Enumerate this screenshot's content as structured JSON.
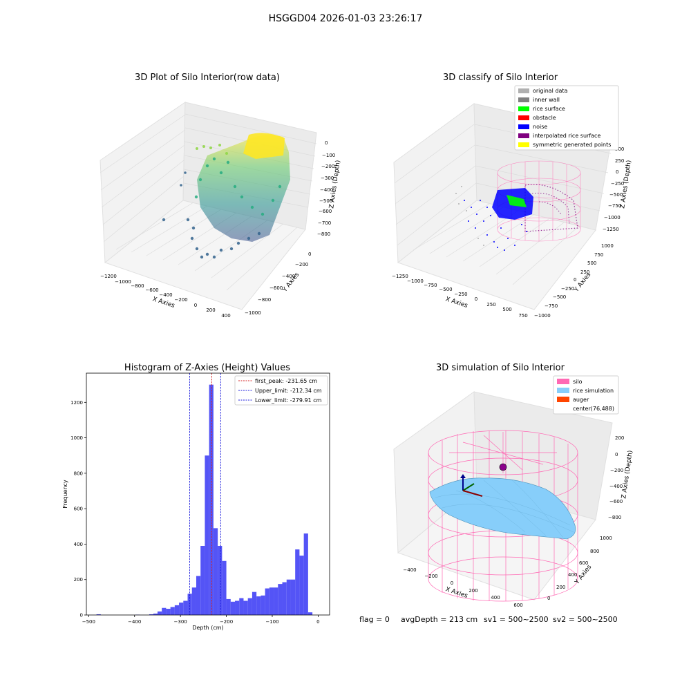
{
  "suptitle": "HSGGD04 2026-01-03 23:26:17",
  "footer": {
    "flag": "flag = 0",
    "avg": "avgDepth = 213 cm",
    "sv1": "sv1 = 500~2500",
    "sv2": "sv2 = 500~2500"
  },
  "colors": {
    "hist_bar": "#4b4bf5",
    "first_peak": "#d62728",
    "limits": "#1f1fdd",
    "silo": "#ff69b4",
    "rice": "#87cefa",
    "auger": "#ff4500",
    "original": "#b0b0b0",
    "inner_wall": "#808080",
    "rice_surface": "#00ff00",
    "obstacle": "#ff0000",
    "noise": "#0000ff",
    "interp": "#800080",
    "symmetric": "#ffff00"
  },
  "chart_data": [
    {
      "type": "scatter",
      "title": "3D Plot of Silo Interior(row data)",
      "xlabel": "X Axies",
      "ylabel": "Y Axies",
      "zlabel": "Z Axies (Depth)",
      "x_ticks": [
        "−1200",
        "−1000",
        "−800",
        "−600",
        "−400",
        "−200",
        "0",
        "200",
        "400"
      ],
      "y_ticks": [
        "0",
        "−200",
        "−400",
        "−600",
        "−800",
        "−1000"
      ],
      "z_ticks": [
        "0",
        "−100",
        "−200",
        "−300",
        "−400",
        "−500",
        "−600",
        "−700",
        "−800"
      ],
      "xlim": [
        -1250,
        450
      ],
      "ylim": [
        -1050,
        50
      ],
      "zlim": [
        -850,
        30
      ]
    },
    {
      "type": "scatter",
      "title": "3D classify of Silo Interior",
      "xlabel": "X Axies",
      "ylabel": "Y Axies",
      "zlabel": "Z Axies (Depth)",
      "x_ticks": [
        "−1250",
        "−1000",
        "−750",
        "−500",
        "−250",
        "0",
        "250",
        "500",
        "750"
      ],
      "y_ticks": [
        "1000",
        "750",
        "500",
        "250",
        "0",
        "−250",
        "−500",
        "−750",
        "−1000"
      ],
      "z_ticks": [
        "500",
        "250",
        "0",
        "−250",
        "−500",
        "−750",
        "−1000",
        "−1250"
      ],
      "legend": [
        "original data",
        "inner wall",
        "rice surface",
        "obstacle",
        "noise",
        "interpolated rice surface",
        "symmetric generated points"
      ],
      "legend_position": "top-right"
    },
    {
      "type": "bar",
      "title": "Histogram of Z-Axies (Height) Values",
      "xlabel": "Depth (cm)",
      "ylabel": "Frequency",
      "xlim": [
        -505,
        25
      ],
      "ylim": [
        0,
        1365
      ],
      "x_ticks": [
        -500,
        -400,
        -300,
        -200,
        -100,
        0
      ],
      "y_ticks": [
        0,
        200,
        400,
        600,
        800,
        1000,
        1200
      ],
      "x_tick_labels": [
        "−500",
        "−400",
        "−300",
        "−200",
        "−100",
        "0"
      ],
      "bin_start": -350,
      "bin_width": 9.375,
      "values": [
        20,
        40,
        35,
        45,
        55,
        70,
        80,
        120,
        155,
        220,
        390,
        900,
        1300,
        490,
        390,
        305,
        90,
        75,
        80,
        95,
        80,
        95,
        130,
        105,
        110,
        150,
        155,
        155,
        175,
        185,
        200,
        200,
        370,
        335,
        460,
        15
      ],
      "outliers": [
        {
          "x": -483,
          "width": 9.375,
          "value": 4
        },
        {
          "x": -398,
          "width": 9.375,
          "value": 2
        },
        {
          "x": -368,
          "width": 9.375,
          "value": 4
        },
        {
          "x": -359,
          "width": 9.375,
          "value": 8
        }
      ],
      "lines": [
        {
          "name": "first_peak: -231.65 cm",
          "x": -231.65,
          "color": "#d62728"
        },
        {
          "name": "Upper_limit: -212.34 cm",
          "x": -212.34,
          "color": "#1f1fdd"
        },
        {
          "name": "Lower_limit: -279.91 cm",
          "x": -279.91,
          "color": "#1f1fdd"
        }
      ],
      "legend_position": "top-right"
    },
    {
      "type": "surface",
      "title": "3D simulation of Silo Interior",
      "xlabel": "X Axies",
      "ylabel": "Y Axies",
      "zlabel": "Z Axies (Depth)",
      "x_ticks": [
        "−400",
        "−200",
        "0",
        "200",
        "400",
        "600"
      ],
      "y_ticks": [
        "1000",
        "800",
        "600",
        "400",
        "200",
        "0"
      ],
      "z_ticks": [
        "200",
        "0",
        "−200",
        "−400",
        "−600",
        "−800"
      ],
      "legend": [
        "silo",
        "rice simulation",
        "auger",
        "center(76,488)"
      ],
      "legend_position": "top-right"
    }
  ]
}
